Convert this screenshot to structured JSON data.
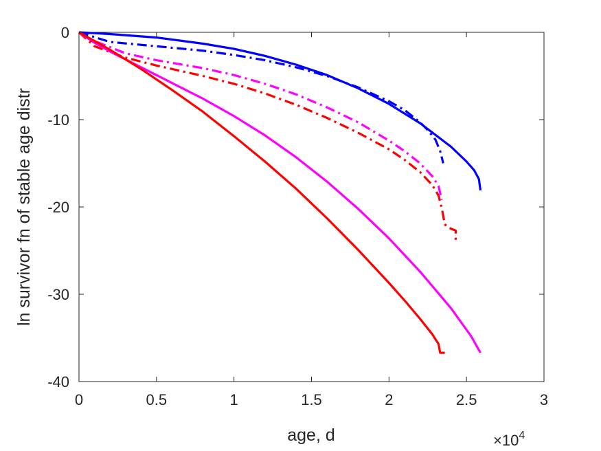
{
  "chart_data": {
    "type": "line",
    "xlabel": "age, d",
    "ylabel": "ln survivor fn of stable age distr",
    "xlim": [
      0,
      30000
    ],
    "ylim": [
      -40,
      0
    ],
    "x_exponent_label": "×10",
    "x_exponent_power": "4",
    "x_ticks": [
      0,
      5000,
      10000,
      15000,
      20000,
      25000,
      30000
    ],
    "x_tick_labels": [
      "0",
      "0.5",
      "1",
      "1.5",
      "2",
      "2.5",
      "3"
    ],
    "y_ticks": [
      0,
      -10,
      -20,
      -30,
      -40
    ],
    "y_tick_labels": [
      "0",
      "-10",
      "-20",
      "-30",
      "-40"
    ],
    "grid": false,
    "series": [
      {
        "color": "#0000ff",
        "dash": "solid",
        "x": [
          0,
          2000,
          5000,
          8000,
          10000,
          12000,
          14000,
          16000,
          18000,
          20000,
          22000,
          24000,
          25000,
          25500,
          25800,
          25900
        ],
        "y": [
          0,
          -0.2,
          -0.6,
          -1.3,
          -1.9,
          -2.7,
          -3.7,
          -4.9,
          -6.4,
          -8.2,
          -10.4,
          -13.1,
          -14.8,
          -15.8,
          -16.8,
          -18.1
        ]
      },
      {
        "color": "#0000ff",
        "dash": "dashdot",
        "x": [
          0,
          2000,
          5000,
          8000,
          10000,
          12000,
          14000,
          16000,
          18000,
          20000,
          21000,
          22000,
          22500,
          23000,
          23300,
          23500
        ],
        "y": [
          0,
          -1.1,
          -1.6,
          -2.1,
          -2.6,
          -3.2,
          -4.0,
          -5.0,
          -6.3,
          -7.9,
          -8.9,
          -10.3,
          -11.2,
          -12.3,
          -13.6,
          -15.0
        ]
      },
      {
        "color": "#ff00ff",
        "dash": "dashdot",
        "x": [
          0,
          1000,
          3000,
          5000,
          8000,
          10000,
          12000,
          14000,
          16000,
          18000,
          20000,
          21000,
          22000,
          22800,
          23200,
          23400
        ],
        "y": [
          0,
          -1.0,
          -2.4,
          -3.2,
          -4.1,
          -4.9,
          -5.9,
          -7.1,
          -8.6,
          -10.3,
          -12.4,
          -13.6,
          -15.0,
          -16.5,
          -17.6,
          -19.2
        ]
      },
      {
        "color": "#ff0000",
        "dash": "dashdot",
        "x": [
          0,
          1000,
          3000,
          5000,
          8000,
          10000,
          12000,
          14000,
          16000,
          18000,
          20000,
          21000,
          22000,
          22800,
          23200,
          23400,
          23600,
          24000,
          24300,
          24300
        ],
        "y": [
          0,
          -1.6,
          -2.9,
          -3.8,
          -5.0,
          -5.9,
          -7.0,
          -8.3,
          -9.8,
          -11.5,
          -13.4,
          -14.6,
          -16.0,
          -17.5,
          -18.7,
          -20.1,
          -22.0,
          -22.5,
          -22.7,
          -24.0
        ]
      },
      {
        "color": "#ff00ff",
        "dash": "solid",
        "x": [
          0,
          1000,
          2000,
          4000,
          6000,
          8000,
          10000,
          12000,
          14000,
          16000,
          18000,
          20000,
          22000,
          24000,
          25300,
          25900
        ],
        "y": [
          0,
          -1.2,
          -2.2,
          -4.0,
          -5.8,
          -7.6,
          -9.6,
          -11.8,
          -14.3,
          -17.1,
          -20.2,
          -23.6,
          -27.4,
          -31.6,
          -34.8,
          -36.7
        ]
      },
      {
        "color": "#ff0000",
        "dash": "solid",
        "x": [
          0,
          1000,
          2000,
          4000,
          6000,
          8000,
          10000,
          12000,
          14000,
          16000,
          18000,
          20000,
          21000,
          22000,
          22800,
          23200,
          23300,
          23600
        ],
        "y": [
          0,
          -1.0,
          -2.0,
          -4.2,
          -6.6,
          -9.1,
          -11.9,
          -14.8,
          -17.9,
          -21.3,
          -24.9,
          -28.7,
          -30.7,
          -32.8,
          -34.6,
          -35.7,
          -36.7,
          -36.7
        ]
      }
    ]
  }
}
